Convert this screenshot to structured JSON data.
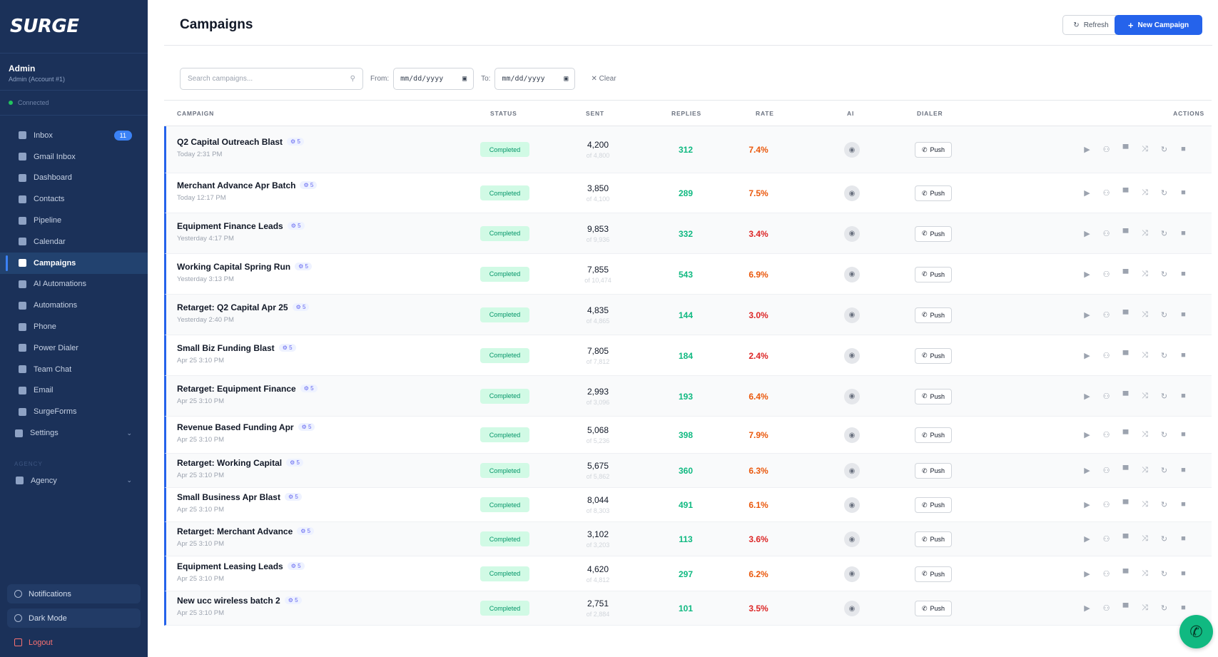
{
  "brand": {
    "logo": "SURGE"
  },
  "account": {
    "name": "Admin",
    "subtitle": "Admin (Account #1)",
    "connection": "Connected"
  },
  "nav": [
    {
      "label": "Inbox",
      "icon": "inbox-icon",
      "badge": "11"
    },
    {
      "label": "Gmail Inbox",
      "icon": "gmail-icon"
    },
    {
      "label": "Dashboard",
      "icon": "chart-icon"
    },
    {
      "label": "Contacts",
      "icon": "contacts-icon"
    },
    {
      "label": "Pipeline",
      "icon": "pipeline-icon"
    },
    {
      "label": "Calendar",
      "icon": "calendar-icon"
    },
    {
      "label": "Campaigns",
      "icon": "megaphone-icon",
      "active": true
    },
    {
      "label": "AI Automations",
      "icon": "robot-icon"
    },
    {
      "label": "Automations",
      "icon": "wand-icon"
    },
    {
      "label": "Phone",
      "icon": "phone-icon"
    },
    {
      "label": "Power Dialer",
      "icon": "rocket-icon"
    },
    {
      "label": "Team Chat",
      "icon": "chat-icon"
    },
    {
      "label": "Email",
      "icon": "email-icon"
    },
    {
      "label": "SurgeForms",
      "icon": "form-icon"
    }
  ],
  "settings": {
    "label": "Settings"
  },
  "agency_section": {
    "title": "AGENCY",
    "item": "Agency"
  },
  "bottom": {
    "notifications": "Notifications",
    "dark_mode": "Dark Mode",
    "logout": "Logout"
  },
  "page": {
    "title": "Campaigns",
    "refresh": "Refresh",
    "new_campaign": "New Campaign"
  },
  "filters": {
    "search_placeholder": "Search campaigns...",
    "from_label": "From:",
    "to_label": "To:",
    "date_placeholder": "mm/dd/yyyy",
    "clear": "Clear"
  },
  "columns": {
    "campaign": "CAMPAIGN",
    "status": "STATUS",
    "sent": "SENT",
    "replies": "REPLIES",
    "rate": "RATE",
    "ai": "AI",
    "dialer": "DIALER",
    "actions": "ACTIONS"
  },
  "colors": {
    "rate_low": "#dc2626",
    "rate_high": "#ea580c",
    "accent": "#2563eb",
    "replies": "#10b981"
  },
  "rows": [
    {
      "name": "Q2 Capital Outreach Blast",
      "tag": "5",
      "time": "Today 2:31 PM",
      "status": "Completed",
      "sent": "4,200",
      "of": "of 4,800",
      "replies": "312",
      "rate": "7.4%"
    },
    {
      "name": "Merchant Advance Apr Batch",
      "tag": "5",
      "time": "Today 12:17 PM",
      "status": "Completed",
      "sent": "3,850",
      "of": "of 4,100",
      "replies": "289",
      "rate": "7.5%"
    },
    {
      "name": "Equipment Finance Leads",
      "tag": "5",
      "time": "Yesterday 4:17 PM",
      "status": "Completed",
      "sent": "9,853",
      "of": "of 9,936",
      "replies": "332",
      "rate": "3.4%"
    },
    {
      "name": "Working Capital Spring Run",
      "tag": "5",
      "time": "Yesterday 3:13 PM",
      "status": "Completed",
      "sent": "7,855",
      "of": "of 10,474",
      "replies": "543",
      "rate": "6.9%"
    },
    {
      "name": "Retarget: Q2 Capital Apr 25",
      "tag": "5",
      "time": "Yesterday 2:40 PM",
      "status": "Completed",
      "sent": "4,835",
      "of": "of 4,865",
      "replies": "144",
      "rate": "3.0%"
    },
    {
      "name": "Small Biz Funding Blast",
      "tag": "5",
      "time": "Apr 25 3:10 PM",
      "status": "Completed",
      "sent": "7,805",
      "of": "of 7,812",
      "replies": "184",
      "rate": "2.4%"
    },
    {
      "name": "Retarget: Equipment Finance",
      "tag": "5",
      "time": "Apr 25 3:10 PM",
      "status": "Completed",
      "sent": "2,993",
      "of": "of 3,096",
      "replies": "193",
      "rate": "6.4%"
    },
    {
      "name": "Revenue Based Funding Apr",
      "tag": "5",
      "time": "Apr 25 3:10 PM",
      "status": "Completed",
      "sent": "5,068",
      "of": "of 5,236",
      "replies": "398",
      "rate": "7.9%"
    },
    {
      "name": "Retarget: Working Capital",
      "tag": "5",
      "time": "Apr 25 3:10 PM",
      "status": "Completed",
      "sent": "5,675",
      "of": "of 5,862",
      "replies": "360",
      "rate": "6.3%"
    },
    {
      "name": "Small Business Apr Blast",
      "tag": "5",
      "time": "Apr 25 3:10 PM",
      "status": "Completed",
      "sent": "8,044",
      "of": "of 8,303",
      "replies": "491",
      "rate": "6.1%"
    },
    {
      "name": "Retarget: Merchant Advance",
      "tag": "5",
      "time": "Apr 25 3:10 PM",
      "status": "Completed",
      "sent": "3,102",
      "of": "of 3,203",
      "replies": "113",
      "rate": "3.6%"
    },
    {
      "name": "Equipment Leasing Leads",
      "tag": "5",
      "time": "Apr 25 3:10 PM",
      "status": "Completed",
      "sent": "4,620",
      "of": "of 4,812",
      "replies": "297",
      "rate": "6.2%"
    },
    {
      "name": "New ucc wireless batch 2",
      "tag": "5",
      "time": "Apr 25 3:10 PM",
      "status": "Completed",
      "sent": "2,751",
      "of": "of 2,884",
      "replies": "101",
      "rate": "3.5%"
    }
  ],
  "row_ui": {
    "ai_icon": "robot-icon",
    "push_label": "Push",
    "actions": [
      "play-icon",
      "users-icon",
      "chart-icon",
      "shuffle-icon",
      "refresh-icon",
      "trash-icon"
    ]
  },
  "fab": {
    "icon": "phone-icon"
  }
}
